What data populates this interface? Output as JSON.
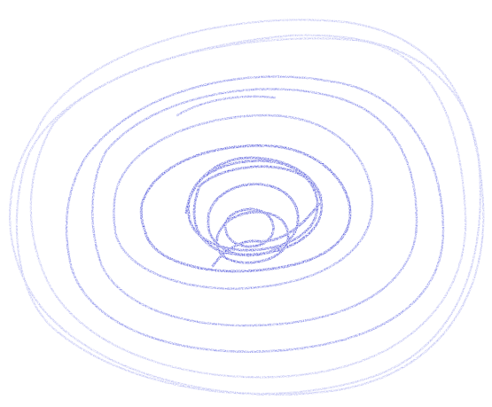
{
  "drawing": {
    "subject": "crayon-spiral-scribble",
    "medium": "crayon",
    "colors": {
      "background": "#ffffff",
      "stroke_light": "#a9adf0",
      "stroke_mid": "#6d73e6",
      "stroke_dark": "#3b41d6"
    }
  }
}
